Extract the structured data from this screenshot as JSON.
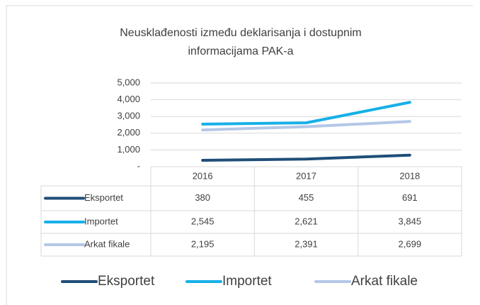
{
  "chart_data": {
    "type": "line",
    "title": [
      "Neusklađenosti između deklarisanja i dostupnim",
      "informacijama PAK-a"
    ],
    "categories": [
      "2016",
      "2017",
      "2018"
    ],
    "series": [
      {
        "name": "Eksportet",
        "color": "#1f4e79",
        "values": [
          380,
          455,
          691
        ],
        "value_labels": [
          "380",
          "455",
          "691"
        ]
      },
      {
        "name": "Importet",
        "color": "#17b0e8",
        "values": [
          2545,
          2621,
          3845
        ],
        "value_labels": [
          "2,545",
          "2,621",
          "3,845"
        ]
      },
      {
        "name": "Arkat fikale",
        "color": "#b4c7e7",
        "values": [
          2195,
          2391,
          2699
        ],
        "value_labels": [
          "2,195",
          "2,391",
          "2,699"
        ]
      }
    ],
    "ylim": [
      0,
      5000
    ],
    "yticks": [
      {
        "value": 0,
        "label": "-"
      },
      {
        "value": 1000,
        "label": "1,000"
      },
      {
        "value": 2000,
        "label": "2,000"
      },
      {
        "value": 3000,
        "label": "3,000"
      },
      {
        "value": 4000,
        "label": "4,000"
      },
      {
        "value": 5000,
        "label": "5,000"
      }
    ],
    "grid": true,
    "data_table": true,
    "legend": "bottom"
  }
}
